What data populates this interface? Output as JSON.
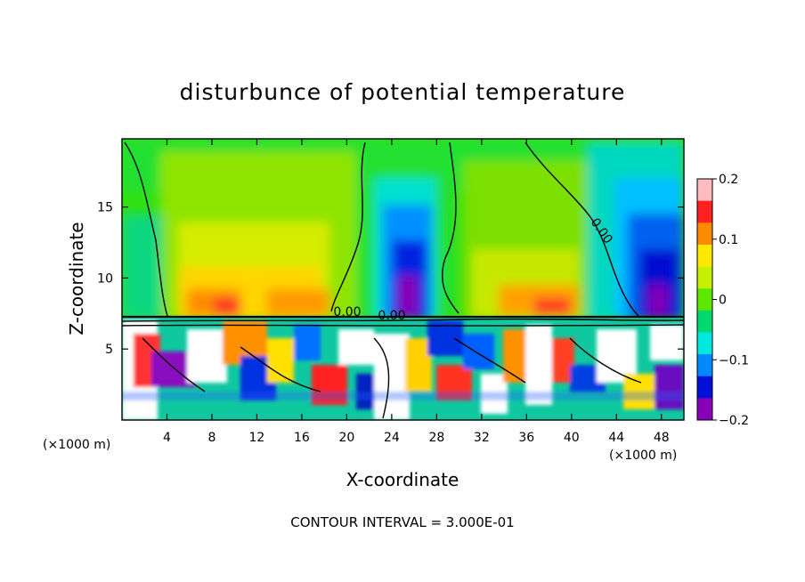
{
  "chart_data": {
    "type": "heatmap",
    "title": "disturbunce of potential temperature",
    "xlabel": "X-coordinate",
    "ylabel": "Z-coordinate",
    "x_unit_left": "(×1000 m)",
    "x_unit_right": "(×1000 m)",
    "xlim": [
      0,
      50
    ],
    "ylim": [
      0,
      19.8
    ],
    "xticks": [
      4,
      8,
      12,
      16,
      20,
      24,
      28,
      32,
      36,
      40,
      44,
      48
    ],
    "xtick_labels": [
      "4",
      "8",
      "12",
      "16",
      "20",
      "24",
      "28",
      "32",
      "36",
      "40",
      "44",
      "48"
    ],
    "yticks": [
      5,
      10,
      15
    ],
    "ytick_labels": [
      "5",
      "10",
      "15"
    ],
    "colorbar": {
      "min": -0.2,
      "max": 0.2,
      "ticks": [
        0.2,
        0.1,
        0,
        -0.1,
        -0.2
      ],
      "tick_labels": [
        "0.2",
        "0.1",
        "0",
        "−0.1",
        "−0.2"
      ],
      "colors": [
        "#ffbcc0",
        "#ff2020",
        "#ff8a00",
        "#ffe900",
        "#c6f000",
        "#5ee800",
        "#00d870",
        "#00e8e0",
        "#0088ff",
        "#0010d8",
        "#8800b8"
      ]
    },
    "contour_label": "0.00",
    "contour_interval_text": "CONTOUR INTERVAL = 3.000E-01",
    "regions": [
      {
        "name": "upper-left warm plume",
        "x_range": [
          4,
          18
        ],
        "z_range": [
          7.5,
          19
        ],
        "approx_value": 0.06
      },
      {
        "name": "cold plume near x=25",
        "x_range": [
          22,
          28
        ],
        "z_range": [
          7.5,
          18
        ],
        "approx_value": -0.18
      },
      {
        "name": "upper-right warm plume",
        "x_range": [
          32,
          42
        ],
        "z_range": [
          7.5,
          17
        ],
        "approx_value": 0.04
      },
      {
        "name": "cold plume near x=47",
        "x_range": [
          44,
          50
        ],
        "z_range": [
          7.5,
          18
        ],
        "approx_value": -0.18
      },
      {
        "name": "turbulent boundary layer",
        "x_range": [
          0,
          50
        ],
        "z_range": [
          0,
          7.5
        ],
        "approx_value": 0.0
      }
    ]
  }
}
